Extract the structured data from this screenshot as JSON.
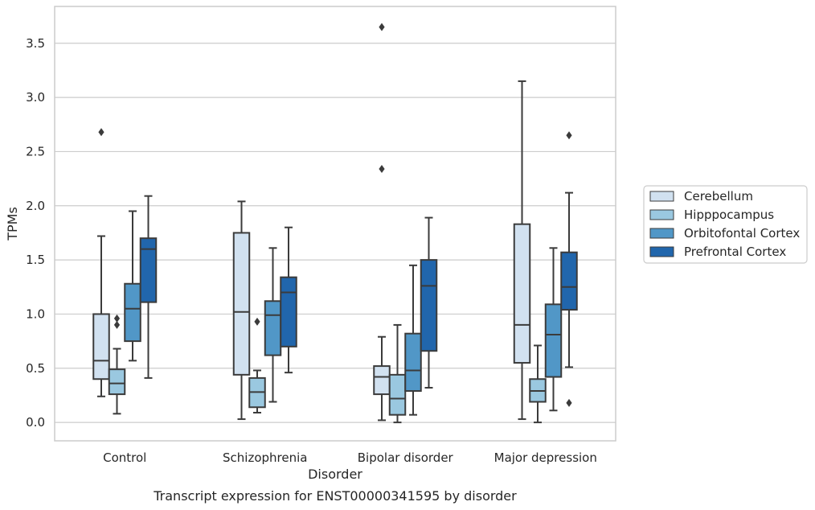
{
  "chart_data": {
    "type": "box",
    "title": "",
    "caption": "Transcript expression for ENST00000341595 by disorder",
    "xlabel": "Disorder",
    "ylabel": "TPMs",
    "ylim": [
      -0.17,
      3.84
    ],
    "yticks": [
      0.0,
      0.5,
      1.0,
      1.5,
      2.0,
      2.5,
      3.0,
      3.5
    ],
    "ytick_labels": [
      "0.0",
      "0.5",
      "1.0",
      "1.5",
      "2.0",
      "2.5",
      "3.0",
      "3.5"
    ],
    "grid": "horizontal",
    "legend_position": "right",
    "categories": [
      "Control",
      "Schizophrenia",
      "Bipolar disorder",
      "Major depression"
    ],
    "series": [
      {
        "name": "Cerebellum",
        "color": "#d1e1f0",
        "boxes": [
          {
            "whisker_low": 0.24,
            "q1": 0.4,
            "median": 0.57,
            "q3": 1.0,
            "whisker_high": 1.72,
            "outliers": [
              2.68
            ]
          },
          {
            "whisker_low": 0.03,
            "q1": 0.44,
            "median": 1.02,
            "q3": 1.75,
            "whisker_high": 2.04,
            "outliers": []
          },
          {
            "whisker_low": 0.02,
            "q1": 0.26,
            "median": 0.42,
            "q3": 0.52,
            "whisker_high": 0.79,
            "outliers": [
              2.34,
              3.65
            ]
          },
          {
            "whisker_low": 0.03,
            "q1": 0.55,
            "median": 0.9,
            "q3": 1.83,
            "whisker_high": 3.15,
            "outliers": []
          }
        ]
      },
      {
        "name": "Hipppocampus",
        "color": "#9ac8e0",
        "boxes": [
          {
            "whisker_low": 0.08,
            "q1": 0.26,
            "median": 0.36,
            "q3": 0.49,
            "whisker_high": 0.68,
            "outliers": [
              0.9,
              0.96
            ]
          },
          {
            "whisker_low": 0.09,
            "q1": 0.14,
            "median": 0.28,
            "q3": 0.41,
            "whisker_high": 0.48,
            "outliers": [
              0.93
            ]
          },
          {
            "whisker_low": 0.0,
            "q1": 0.07,
            "median": 0.22,
            "q3": 0.44,
            "whisker_high": 0.9,
            "outliers": []
          },
          {
            "whisker_low": 0.0,
            "q1": 0.19,
            "median": 0.29,
            "q3": 0.4,
            "whisker_high": 0.71,
            "outliers": []
          }
        ]
      },
      {
        "name": "Orbitofontal Cortex",
        "color": "#5197c7",
        "boxes": [
          {
            "whisker_low": 0.57,
            "q1": 0.75,
            "median": 1.05,
            "q3": 1.28,
            "whisker_high": 1.95,
            "outliers": []
          },
          {
            "whisker_low": 0.19,
            "q1": 0.62,
            "median": 0.99,
            "q3": 1.12,
            "whisker_high": 1.61,
            "outliers": []
          },
          {
            "whisker_low": 0.07,
            "q1": 0.29,
            "median": 0.48,
            "q3": 0.82,
            "whisker_high": 1.45,
            "outliers": []
          },
          {
            "whisker_low": 0.11,
            "q1": 0.42,
            "median": 0.81,
            "q3": 1.09,
            "whisker_high": 1.61,
            "outliers": []
          }
        ]
      },
      {
        "name": "Prefrontal Cortex",
        "color": "#2166ac",
        "boxes": [
          {
            "whisker_low": 0.41,
            "q1": 1.11,
            "median": 1.6,
            "q3": 1.7,
            "whisker_high": 2.09,
            "outliers": []
          },
          {
            "whisker_low": 0.46,
            "q1": 0.7,
            "median": 1.2,
            "q3": 1.34,
            "whisker_high": 1.8,
            "outliers": []
          },
          {
            "whisker_low": 0.32,
            "q1": 0.66,
            "median": 1.26,
            "q3": 1.5,
            "whisker_high": 1.89,
            "outliers": []
          },
          {
            "whisker_low": 0.51,
            "q1": 1.04,
            "median": 1.25,
            "q3": 1.57,
            "whisker_high": 2.12,
            "outliers": [
              0.18,
              2.65
            ]
          }
        ]
      }
    ]
  }
}
